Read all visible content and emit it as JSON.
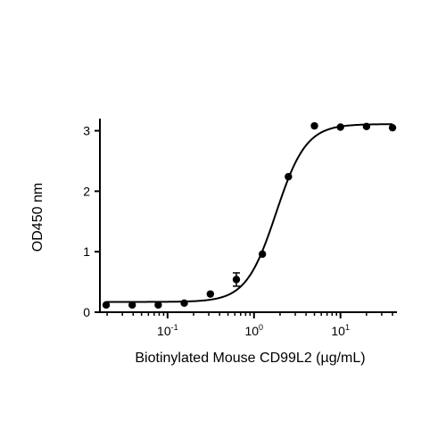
{
  "chart_data": {
    "type": "scatter",
    "title": "",
    "xlabel": "Biotinylated Mouse CD99L2 (µg/mL)",
    "ylabel": "OD450 nm",
    "xscale": "log",
    "xlim": [
      0.0165,
      45
    ],
    "ylim": [
      0,
      3.2
    ],
    "grid": false,
    "legend": "none",
    "colors": {
      "points": "#000000",
      "curve": "#000000",
      "axes": "#000000"
    },
    "x_ticks": [
      {
        "value": 0.1,
        "base": "10",
        "exp": "-1"
      },
      {
        "value": 1,
        "base": "10",
        "exp": "0"
      },
      {
        "value": 10,
        "base": "10",
        "exp": "1"
      }
    ],
    "y_ticks": [
      {
        "value": 0,
        "label": "0"
      },
      {
        "value": 1,
        "label": "1"
      },
      {
        "value": 2,
        "label": "2"
      },
      {
        "value": 3,
        "label": "3"
      }
    ],
    "series": [
      {
        "x": [
          0.0195,
          0.039,
          0.078,
          0.156,
          0.3125,
          0.625,
          1.25,
          2.5,
          5,
          10,
          20,
          40
        ],
        "y": [
          0.12,
          0.12,
          0.12,
          0.15,
          0.3,
          0.54,
          0.96,
          2.24,
          3.08,
          3.06,
          3.07,
          3.05
        ],
        "error": [
          0.02,
          0.02,
          0.02,
          0.02,
          0.03,
          0.11,
          0.03,
          0.03,
          0.03,
          0.02,
          0.02,
          0.03
        ]
      }
    ],
    "fit": {
      "model": "4PL",
      "bottom": 0.17,
      "top": 3.11,
      "ec50": 1.8,
      "hill": 2.5
    }
  }
}
